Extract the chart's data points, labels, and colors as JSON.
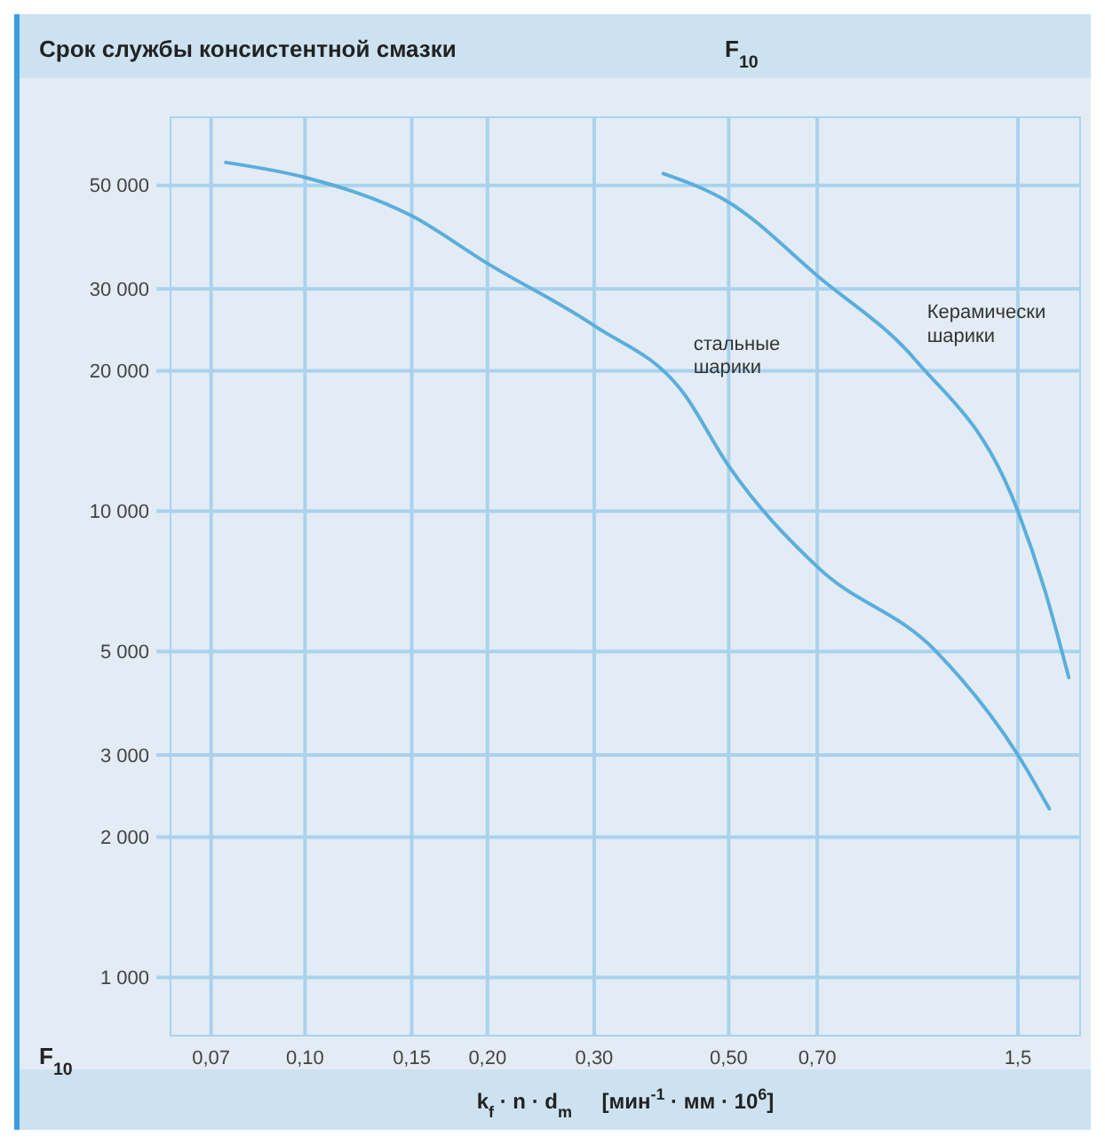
{
  "chart_data": {
    "type": "line",
    "title": "Срок службы консистентной смазки",
    "subtitle": "F$_{10}$",
    "ylabel": "F$_{10}$",
    "xlabel": "k$_{f}$ · n · d$_{m}$     [мин$^{-1}$ · мм · 10$^{6}$]",
    "log": "xy",
    "grid": true,
    "legend": false,
    "marker": "none",
    "line_style": "solid",
    "xlim": [
      0.06,
      1.9
    ],
    "ylim": [
      750,
      70000
    ],
    "xticks": [
      {
        "value": 0.07,
        "label": "0,07"
      },
      {
        "value": 0.1,
        "label": "0,10"
      },
      {
        "value": 0.15,
        "label": "0,15"
      },
      {
        "value": 0.2,
        "label": "0,20"
      },
      {
        "value": 0.3,
        "label": "0,30"
      },
      {
        "value": 0.5,
        "label": "0,50"
      },
      {
        "value": 0.7,
        "label": "0,70"
      },
      {
        "value": 1.5,
        "label": "1,5"
      }
    ],
    "yticks": [
      {
        "value": 1000,
        "label": "1 000"
      },
      {
        "value": 2000,
        "label": "2 000"
      },
      {
        "value": 3000,
        "label": "3 000"
      },
      {
        "value": 5000,
        "label": "5 000"
      },
      {
        "value": 10000,
        "label": "10 000"
      },
      {
        "value": 20000,
        "label": "20 000"
      },
      {
        "value": 30000,
        "label": "30 000"
      },
      {
        "value": 50000,
        "label": "50 000"
      }
    ],
    "series": [
      {
        "name": "стальные шарики",
        "color": "#5aaedc",
        "x": [
          0.074,
          0.1,
          0.15,
          0.2,
          0.3,
          0.42,
          0.5,
          0.7,
          1.1,
          1.5,
          1.69
        ],
        "values": [
          56000,
          52000,
          43000,
          34000,
          25000,
          18000,
          12500,
          7600,
          5000,
          3000,
          2300
        ]
      },
      {
        "name": "Керамически шарики",
        "color": "#5aaedc",
        "x": [
          0.39,
          0.5,
          0.7,
          1.02,
          1.5,
          1.66,
          1.82
        ],
        "values": [
          53000,
          46000,
          32000,
          21000,
          10000,
          6800,
          4400
        ]
      }
    ]
  }
}
